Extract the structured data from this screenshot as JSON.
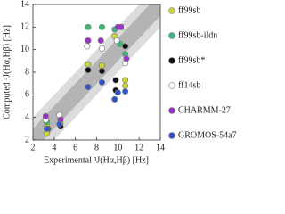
{
  "chart_data": {
    "type": "scatter",
    "x_label": "Experimental ³J(Hα,Hβ) [Hz]",
    "y_label": "Computed ³J(Hα,Hβ) [Hz]",
    "xlim": [
      2,
      14
    ],
    "ylim": [
      2,
      14
    ],
    "xticks": [
      2,
      4,
      6,
      8,
      10,
      12,
      14
    ],
    "yticks": [
      2,
      4,
      6,
      8,
      10,
      12,
      14
    ],
    "bands": [
      {
        "halfwidth": 2,
        "color": "#dcdcdc"
      },
      {
        "halfwidth": 1,
        "color": "#b4b4b4"
      }
    ],
    "series": [
      {
        "name": "ff99sb",
        "color": "#c9d43a",
        "x": [
          3.3,
          3.3,
          4.6,
          7.2,
          8.5,
          9.7,
          10.7,
          10.7
        ],
        "values": [
          3.3,
          2.6,
          3.5,
          8.7,
          8.6,
          11.2,
          7.3,
          6.8
        ]
      },
      {
        "name": "ff99sb-ildn",
        "color": "#3cb87a",
        "x": [
          3.3,
          4.6,
          7.2,
          8.5,
          9.7,
          10.2,
          10.7
        ],
        "values": [
          3.6,
          3.9,
          12,
          12,
          11.8,
          10.5,
          9.6
        ]
      },
      {
        "name": "ff99sb*",
        "color": "#111111",
        "x": [
          3.4,
          4.6,
          7.2,
          8.5,
          9.8,
          9.8,
          10.7
        ],
        "values": [
          3.0,
          3.2,
          8.2,
          8.1,
          7.3,
          6.4,
          10.3
        ]
      },
      {
        "name": "ff14sb",
        "color": "#ffffff",
        "x": [
          3.2,
          4.5,
          7.1,
          8.5,
          9.9,
          10.7,
          10.5
        ],
        "values": [
          3.8,
          4.2,
          10.3,
          10.1,
          10.8,
          8.8,
          12
        ]
      },
      {
        "name": "CHARMM-27",
        "color": "#9a32cd",
        "x": [
          3.2,
          4.6,
          7.2,
          8.4,
          10.0,
          10.3,
          10.8
        ],
        "values": [
          4.1,
          3.8,
          10.8,
          10.8,
          12.0,
          12,
          9.2
        ]
      },
      {
        "name": "GROMOS-54a7",
        "color": "#3355cc",
        "x": [
          3.3,
          4.5,
          7.2,
          8.5,
          9.7,
          10.0,
          10.7
        ],
        "values": [
          3.0,
          3.4,
          6.7,
          7.1,
          5.6,
          6.2,
          6.3
        ]
      }
    ]
  }
}
